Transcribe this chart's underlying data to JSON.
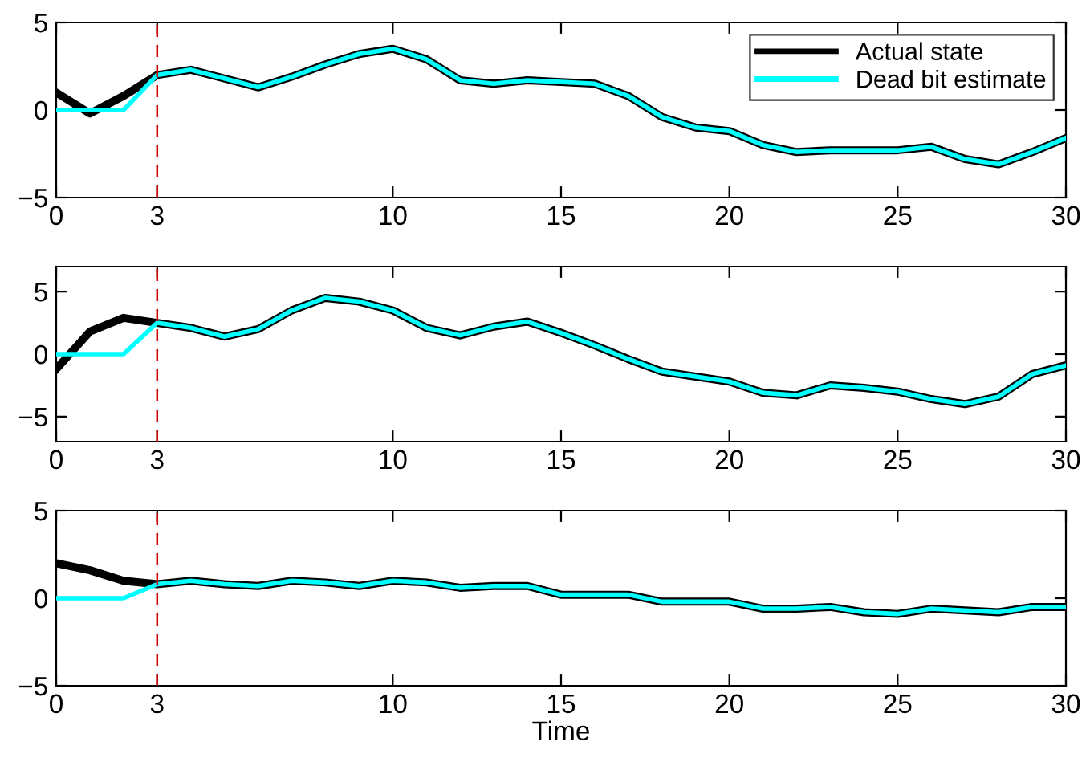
{
  "chart_data": [
    {
      "type": "line",
      "x": [
        0,
        1,
        2,
        3,
        4,
        5,
        6,
        7,
        8,
        9,
        10,
        11,
        12,
        13,
        14,
        15,
        16,
        17,
        18,
        19,
        20,
        21,
        22,
        23,
        24,
        25,
        26,
        27,
        28,
        29,
        30
      ],
      "xlim": [
        0,
        30
      ],
      "xticks": [
        0,
        3,
        10,
        15,
        20,
        25,
        30
      ],
      "ylim": [
        -5,
        5
      ],
      "yticks": [
        -5,
        0,
        5
      ],
      "grid": false,
      "legend": "top right",
      "series": [
        {
          "name": "Actual state",
          "color": "#000000",
          "values": [
            1.0,
            -0.2,
            0.8,
            2.0,
            2.3,
            1.8,
            1.3,
            1.9,
            2.6,
            3.2,
            3.5,
            2.9,
            1.7,
            1.5,
            1.7,
            1.6,
            1.5,
            0.8,
            -0.4,
            -1.0,
            -1.2,
            -2.0,
            -2.4,
            -2.3,
            -2.3,
            -2.3,
            -2.1,
            -2.8,
            -3.1,
            -2.4,
            -1.6
          ]
        },
        {
          "name": "Dead bit estimate",
          "color": "#00ffff",
          "values": [
            0,
            0,
            0,
            2.0,
            2.3,
            1.8,
            1.3,
            1.9,
            2.6,
            3.2,
            3.5,
            2.9,
            1.7,
            1.5,
            1.7,
            1.6,
            1.5,
            0.8,
            -0.4,
            -1.0,
            -1.2,
            -2.0,
            -2.4,
            -2.3,
            -2.3,
            -2.3,
            -2.1,
            -2.8,
            -3.1,
            -2.4,
            -1.6
          ]
        }
      ],
      "ref_lines": [
        {
          "axis": "x",
          "value": 3,
          "color": "#cc0000",
          "line_style": "dashed"
        }
      ]
    },
    {
      "type": "line",
      "x": [
        0,
        1,
        2,
        3,
        4,
        5,
        6,
        7,
        8,
        9,
        10,
        11,
        12,
        13,
        14,
        15,
        16,
        17,
        18,
        19,
        20,
        21,
        22,
        23,
        24,
        25,
        26,
        27,
        28,
        29,
        30
      ],
      "xlim": [
        0,
        30
      ],
      "xticks": [
        0,
        3,
        10,
        15,
        20,
        25,
        30
      ],
      "ylim": [
        -7,
        7
      ],
      "yticks": [
        -5,
        0,
        5
      ],
      "grid": false,
      "series": [
        {
          "color": "#000000",
          "values": [
            -1.2,
            1.8,
            2.9,
            2.5,
            2.1,
            1.4,
            2.0,
            3.5,
            4.5,
            4.2,
            3.5,
            2.1,
            1.5,
            2.2,
            2.6,
            1.7,
            0.7,
            -0.4,
            -1.4,
            -1.8,
            -2.2,
            -3.1,
            -3.3,
            -2.5,
            -2.7,
            -3.0,
            -3.6,
            -4.0,
            -3.4,
            -1.6,
            -0.9
          ]
        },
        {
          "color": "#00ffff",
          "values": [
            0,
            0,
            0,
            2.5,
            2.1,
            1.4,
            2.0,
            3.5,
            4.5,
            4.2,
            3.5,
            2.1,
            1.5,
            2.2,
            2.6,
            1.7,
            0.7,
            -0.4,
            -1.4,
            -1.8,
            -2.2,
            -3.1,
            -3.3,
            -2.5,
            -2.7,
            -3.0,
            -3.6,
            -4.0,
            -3.4,
            -1.6,
            -0.9
          ]
        }
      ],
      "ref_lines": [
        {
          "axis": "x",
          "value": 3,
          "color": "#cc0000",
          "line_style": "dashed"
        }
      ]
    },
    {
      "type": "line",
      "x": [
        0,
        1,
        2,
        3,
        4,
        5,
        6,
        7,
        8,
        9,
        10,
        11,
        12,
        13,
        14,
        15,
        16,
        17,
        18,
        19,
        20,
        21,
        22,
        23,
        24,
        25,
        26,
        27,
        28,
        29,
        30
      ],
      "xlim": [
        0,
        30
      ],
      "xticks": [
        0,
        3,
        10,
        15,
        20,
        25,
        30
      ],
      "ylim": [
        -5,
        5
      ],
      "yticks": [
        -5,
        0,
        5
      ],
      "grid": false,
      "xlabel": "Time",
      "series": [
        {
          "color": "#000000",
          "values": [
            2.0,
            1.6,
            1.0,
            0.8,
            1.0,
            0.8,
            0.7,
            1.0,
            0.9,
            0.7,
            1.0,
            0.9,
            0.6,
            0.7,
            0.7,
            0.2,
            0.2,
            0.2,
            -0.2,
            -0.2,
            -0.2,
            -0.6,
            -0.6,
            -0.5,
            -0.8,
            -0.9,
            -0.6,
            -0.7,
            -0.8,
            -0.5,
            -0.5
          ]
        },
        {
          "color": "#00ffff",
          "values": [
            0,
            0,
            0,
            0.8,
            1.0,
            0.8,
            0.7,
            1.0,
            0.9,
            0.7,
            1.0,
            0.9,
            0.6,
            0.7,
            0.7,
            0.2,
            0.2,
            0.2,
            -0.2,
            -0.2,
            -0.2,
            -0.6,
            -0.6,
            -0.5,
            -0.8,
            -0.9,
            -0.6,
            -0.7,
            -0.8,
            -0.5,
            -0.5
          ]
        }
      ],
      "ref_lines": [
        {
          "axis": "x",
          "value": 3,
          "color": "#cc0000",
          "line_style": "dashed"
        }
      ]
    }
  ]
}
